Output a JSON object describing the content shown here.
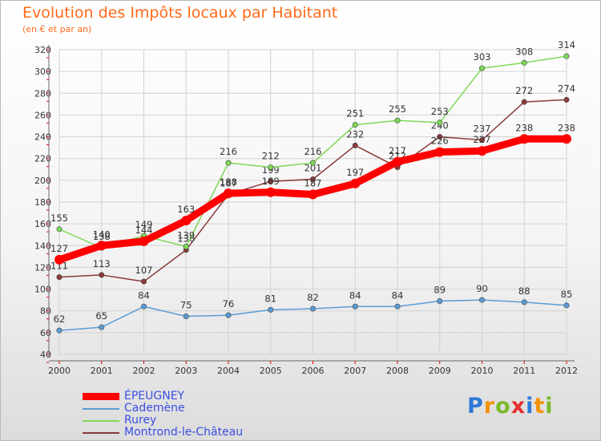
{
  "chart_data": {
    "type": "line",
    "title": "Evolution des Impôts locaux par Habitant",
    "subtitle": "(en € et par an)",
    "xlabel": "",
    "ylabel": "",
    "categories": [
      "2000",
      "2001",
      "2002",
      "2003",
      "2004",
      "2005",
      "2006",
      "2007",
      "2008",
      "2009",
      "2010",
      "2011",
      "2012"
    ],
    "ylim": [
      40,
      320
    ],
    "yticks": [
      40,
      60,
      80,
      100,
      120,
      140,
      160,
      180,
      200,
      220,
      240,
      260,
      280,
      300,
      320
    ],
    "grid": true,
    "legend_position": "bottom-left",
    "series": [
      {
        "name": "Montrond-le-Château",
        "color": "#8b3a3a",
        "values": [
          111,
          113,
          107,
          136,
          187,
          199,
          201,
          232,
          212,
          240,
          237,
          272,
          274
        ]
      },
      {
        "name": "Rurey",
        "color": "#7ed957",
        "values": [
          155,
          138,
          149,
          139,
          216,
          212,
          216,
          251,
          255,
          253,
          303,
          308,
          314
        ]
      },
      {
        "name": "Cademène",
        "color": "#5b9bd5",
        "values": [
          62,
          65,
          84,
          75,
          76,
          81,
          82,
          84,
          84,
          89,
          90,
          88,
          85
        ]
      },
      {
        "name": "ÉPEUGNEY",
        "color": "#ff0000",
        "values": [
          127,
          140,
          144,
          163,
          188,
          189,
          187,
          197,
          217,
          226,
          227,
          238,
          238
        ]
      }
    ]
  },
  "legend": {
    "items": [
      {
        "label": "ÉPEUGNEY",
        "color": "#ff0000"
      },
      {
        "label": "Cademène",
        "color": "#5b9bd5"
      },
      {
        "label": "Rurey",
        "color": "#7ed957"
      },
      {
        "label": "Montrond-le-Château",
        "color": "#8b3a3a"
      }
    ]
  },
  "logo": {
    "letters": [
      "P",
      "r",
      "o",
      "x",
      "i",
      "t",
      "i"
    ],
    "colors": [
      "#2e78d6",
      "#f39200",
      "#7ab929",
      "#e62e2e",
      "#2e78d6",
      "#f39200",
      "#7ab929"
    ]
  }
}
